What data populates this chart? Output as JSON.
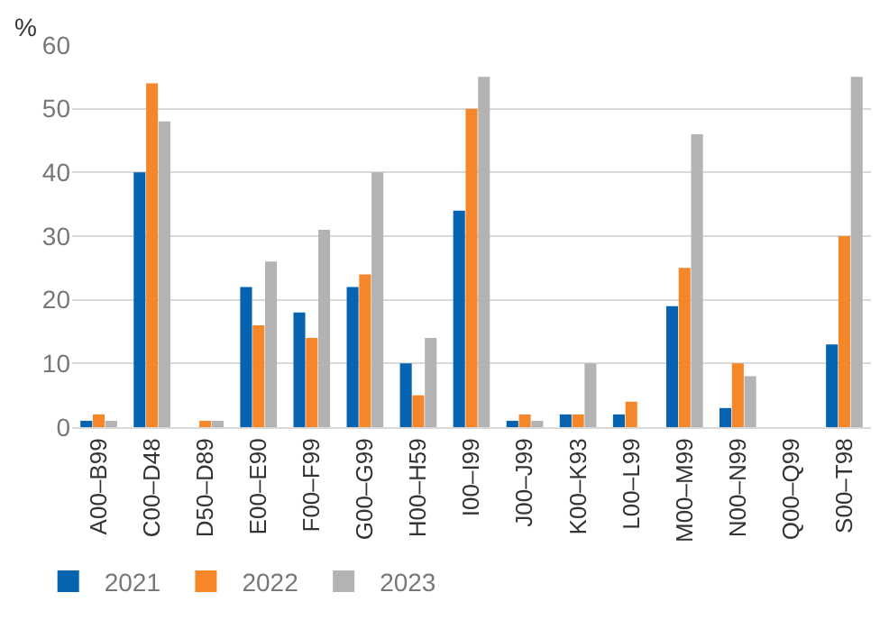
{
  "chart_data": {
    "type": "bar",
    "ylabel": "%",
    "categories": [
      "A00–B99",
      "C00–D48",
      "D50–D89",
      "E00–E90",
      "F00–F99",
      "G00–G99",
      "H00–H59",
      "I00–I99",
      "J00–J99",
      "K00–K93",
      "L00–L99",
      "M00–M99",
      "N00–N99",
      "Q00–Q99",
      "S00–T98"
    ],
    "series": [
      {
        "name": "2021",
        "color": "#0563b0",
        "values": [
          1,
          40,
          0,
          22,
          18,
          22,
          10,
          34,
          1,
          2,
          2,
          19,
          3,
          0,
          13
        ]
      },
      {
        "name": "2022",
        "color": "#f5862a",
        "values": [
          2,
          54,
          1,
          16,
          14,
          24,
          5,
          50,
          2,
          2,
          4,
          25,
          10,
          0,
          30
        ]
      },
      {
        "name": "2023",
        "color": "#b3b3b3",
        "values": [
          1,
          48,
          1,
          26,
          31,
          40,
          14,
          55,
          1,
          10,
          0,
          46,
          8,
          0,
          55
        ]
      }
    ],
    "ylim": [
      0,
      60
    ],
    "yticks": [
      0,
      10,
      20,
      30,
      40,
      50,
      60
    ],
    "grid": "y",
    "legend": "bottom left"
  }
}
